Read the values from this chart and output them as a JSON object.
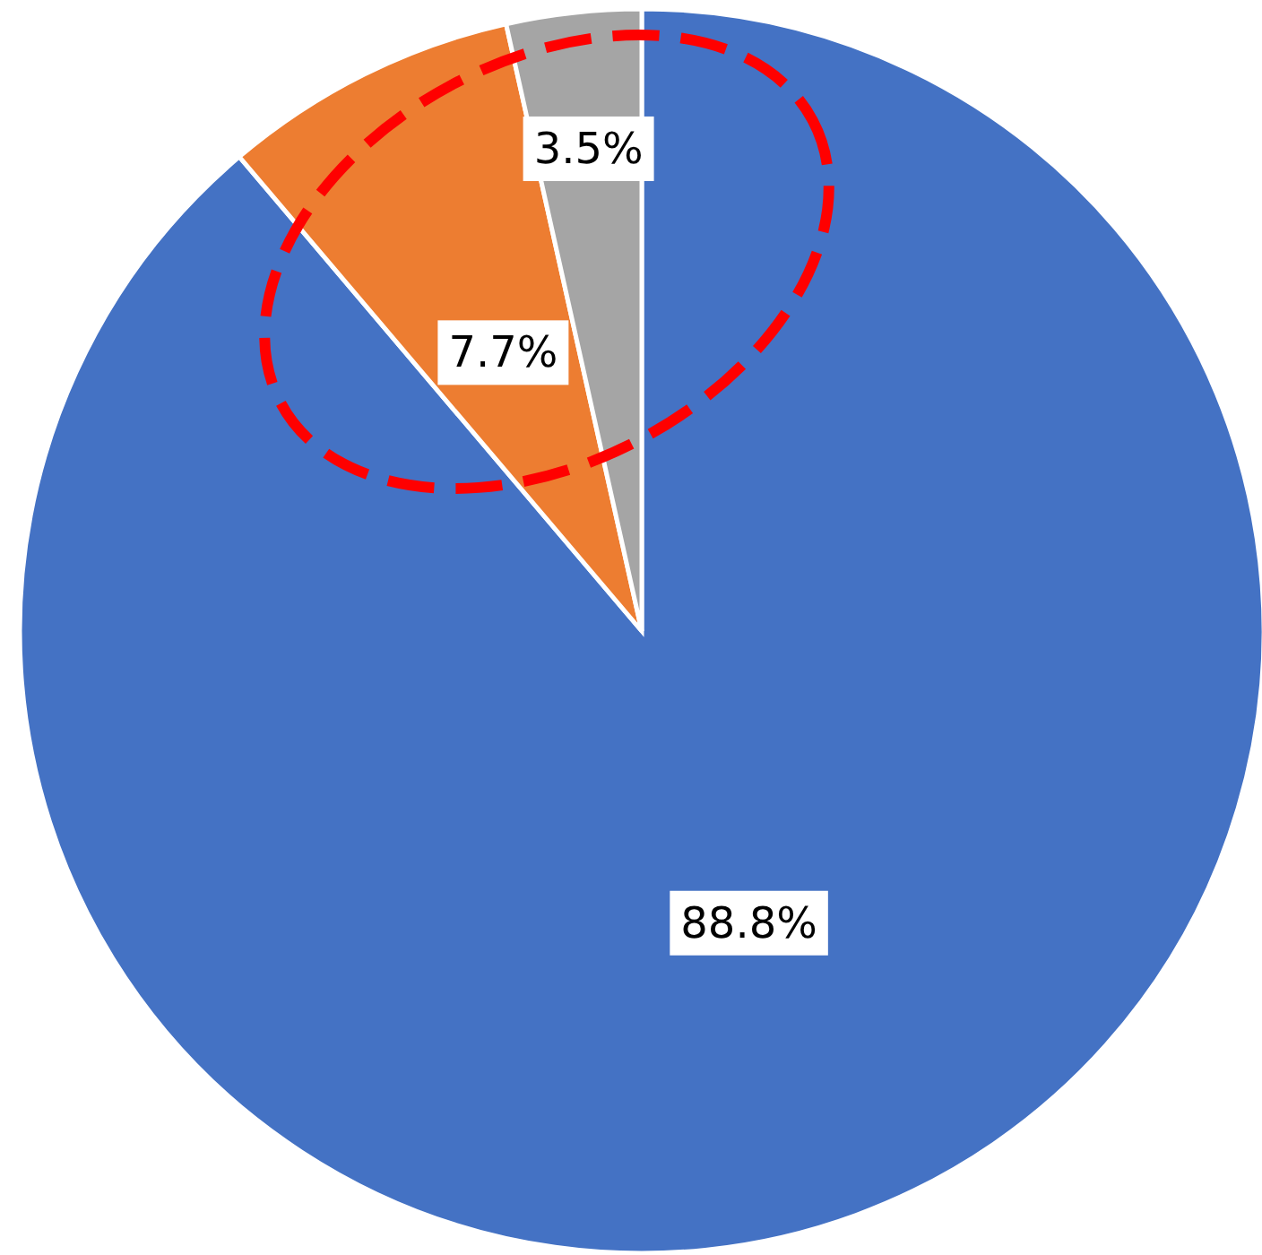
{
  "chart_data": {
    "type": "pie",
    "categories": [
      null,
      null,
      null
    ],
    "values": [
      88.8,
      7.7,
      3.5
    ],
    "colors": [
      "#4472c4",
      "#ed7d31",
      "#a5a5a5"
    ],
    "value_labels": [
      "88.8%",
      "7.7%",
      "3.5%"
    ]
  }
}
